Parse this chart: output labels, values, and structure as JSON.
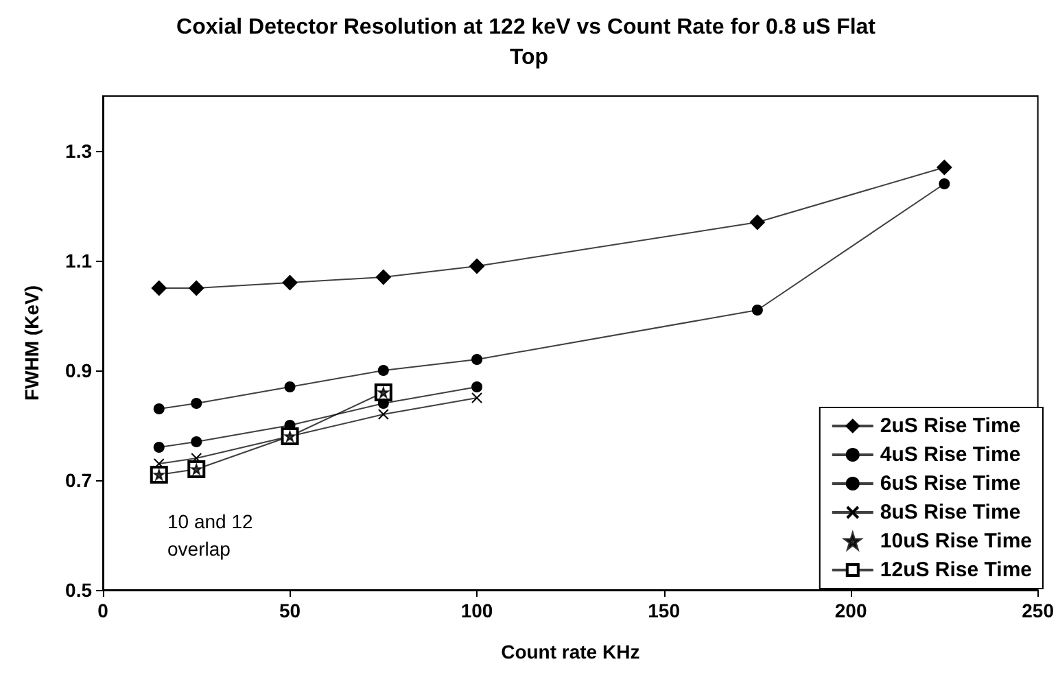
{
  "chart_data": {
    "type": "line",
    "title": "Coxial Detector Resolution at 122 keV vs Count Rate for 0.8 uS Flat Top",
    "xlabel": "Count rate KHz",
    "ylabel": "FWHM (KeV)",
    "annotations": [
      "10 and 12 overlap"
    ],
    "x": [
      15,
      25,
      50,
      75,
      100,
      175,
      225
    ],
    "series": [
      {
        "name": "2uS Rise Time",
        "color": "#000000",
        "marker": "diamond",
        "values": [
          1.05,
          1.05,
          1.06,
          1.07,
          1.09,
          1.17,
          1.27
        ]
      },
      {
        "name": "4uS Rise Time",
        "color": "#000000",
        "marker": "circle",
        "values": [
          0.83,
          0.84,
          0.87,
          0.9,
          0.92,
          1.01,
          1.24
        ]
      },
      {
        "name": "6uS Rise Time",
        "color": "#000000",
        "marker": "circle",
        "values": [
          0.76,
          0.77,
          0.8,
          0.84,
          0.87,
          null,
          null
        ]
      },
      {
        "name": "8uS Rise Time",
        "color": "#000000",
        "marker": "cross",
        "values": [
          0.73,
          0.74,
          0.78,
          0.82,
          0.85,
          null,
          null
        ]
      },
      {
        "name": "10uS Rise Time",
        "type": "scatter",
        "color": "#000000",
        "marker": "star",
        "values": [
          0.71,
          0.72,
          0.78,
          0.86,
          null,
          null,
          null
        ]
      },
      {
        "name": "12uS Rise Time",
        "color": "#000000",
        "marker": "square",
        "values": [
          0.71,
          0.72,
          0.78,
          0.86,
          null,
          null,
          null
        ]
      }
    ],
    "xlim": [
      0,
      250
    ],
    "xticks": [
      0,
      50,
      100,
      150,
      200,
      250
    ],
    "ylim": [
      0.5,
      1.4
    ],
    "yticks": [
      0.5,
      0.7,
      0.9,
      1.1,
      1.3
    ],
    "grid": false,
    "legend": "bottom right"
  }
}
